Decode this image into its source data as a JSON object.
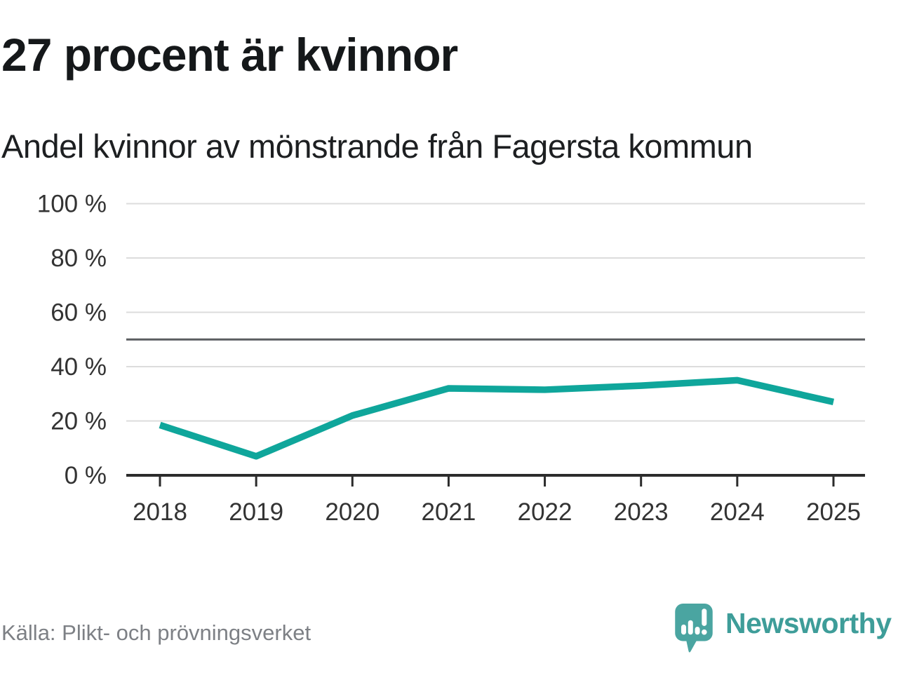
{
  "header": {
    "title": "27 procent är kvinnor",
    "subtitle": "Andel kvinnor av mönstrande från Fagersta kommun"
  },
  "chart_data": {
    "type": "line",
    "title": "27 procent är kvinnor",
    "subtitle": "Andel kvinnor av mönstrande från Fagersta kommun",
    "categories": [
      "2018",
      "2019",
      "2020",
      "2021",
      "2022",
      "2023",
      "2024",
      "2025"
    ],
    "series": [
      {
        "name": "Andel kvinnor av mönstrande",
        "values": [
          18.5,
          7,
          22,
          32,
          31.5,
          33,
          35,
          27
        ]
      }
    ],
    "xlabel": "",
    "ylabel": "",
    "ylim": [
      0,
      100
    ],
    "yticks": [
      0,
      20,
      40,
      60,
      80,
      100
    ],
    "ytick_suffix": " %",
    "reference_line": {
      "value": 50
    },
    "grid": true,
    "legend_position": "none",
    "colors": {
      "line": "#0fa69b",
      "grid": "#dcdcdc",
      "axis": "#2b2b2b",
      "reference": "#5a5d60",
      "tick_label": "#333333"
    }
  },
  "footer": {
    "source": "Källa: Plikt- och prövningsverket",
    "brand": "Newsworthy",
    "brand_color": "#3e9d99",
    "logo_color": "#4aa5a1"
  }
}
